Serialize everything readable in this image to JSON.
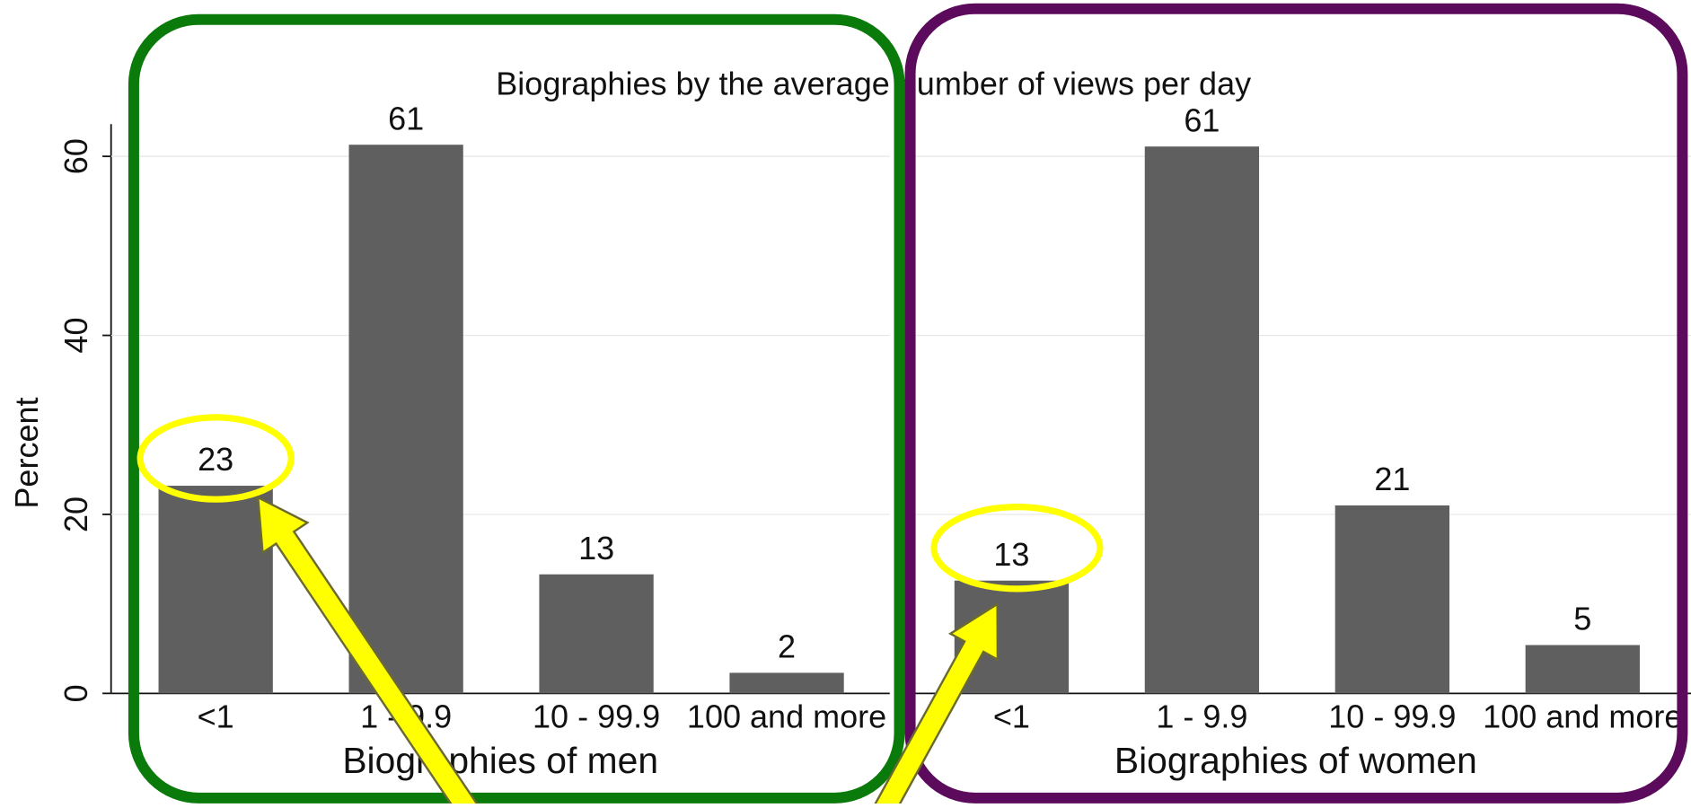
{
  "chart_data": {
    "type": "bar",
    "title": "Biographies by the average number of views per day",
    "ylabel": "Percent",
    "ylim": [
      0,
      63.6
    ],
    "yticks": [
      0,
      20,
      40,
      60
    ],
    "grid": true,
    "color": "#5f5f5f",
    "panels": [
      {
        "xlabel": "Biographies of men",
        "categories": [
          "<1",
          "1 - 9.9",
          "10 - 99.9",
          "100 and more"
        ],
        "values": [
          23.2,
          61.3,
          13.3,
          2.3
        ],
        "value_labels": [
          "23",
          "61",
          "13",
          "2"
        ]
      },
      {
        "xlabel": "Biographies of women",
        "categories": [
          "<1",
          "1 - 9.9",
          "10 - 99.9",
          "100 and more"
        ],
        "values": [
          12.6,
          61.1,
          21.0,
          5.4
        ],
        "value_labels": [
          "13",
          "61",
          "21",
          "5"
        ]
      }
    ]
  }
}
